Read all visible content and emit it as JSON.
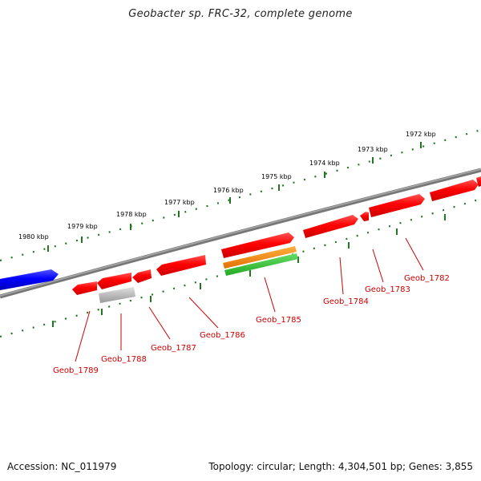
{
  "title": "Geobacter sp. FRC-32, complete genome",
  "accession": "Accession: NC_011979",
  "summary": "Topology: circular; Length: 4,304,501 bp; Genes: 3,855",
  "kbp_labels": [
    "1980 kbp",
    "1979 kbp",
    "1978 kbp",
    "1977 kbp",
    "1976 kbp",
    "1975 kbp",
    "1974 kbp",
    "1973 kbp",
    "1972 kbp"
  ],
  "gene_labels": [
    "Geob_1789",
    "Geob_1788",
    "Geob_1787",
    "Geob_1786",
    "Geob_1785",
    "Geob_1784",
    "Geob_1783",
    "Geob_1782"
  ],
  "colors": {
    "cds": "#ff0000",
    "rna_forward": "#0000ff",
    "pseudo": "#aaaaaa",
    "feature_orange": "#ff8c00",
    "feature_green": "#33bb33",
    "backbone": "#777777",
    "ruler": "#227722",
    "label": "#cc0000"
  }
}
